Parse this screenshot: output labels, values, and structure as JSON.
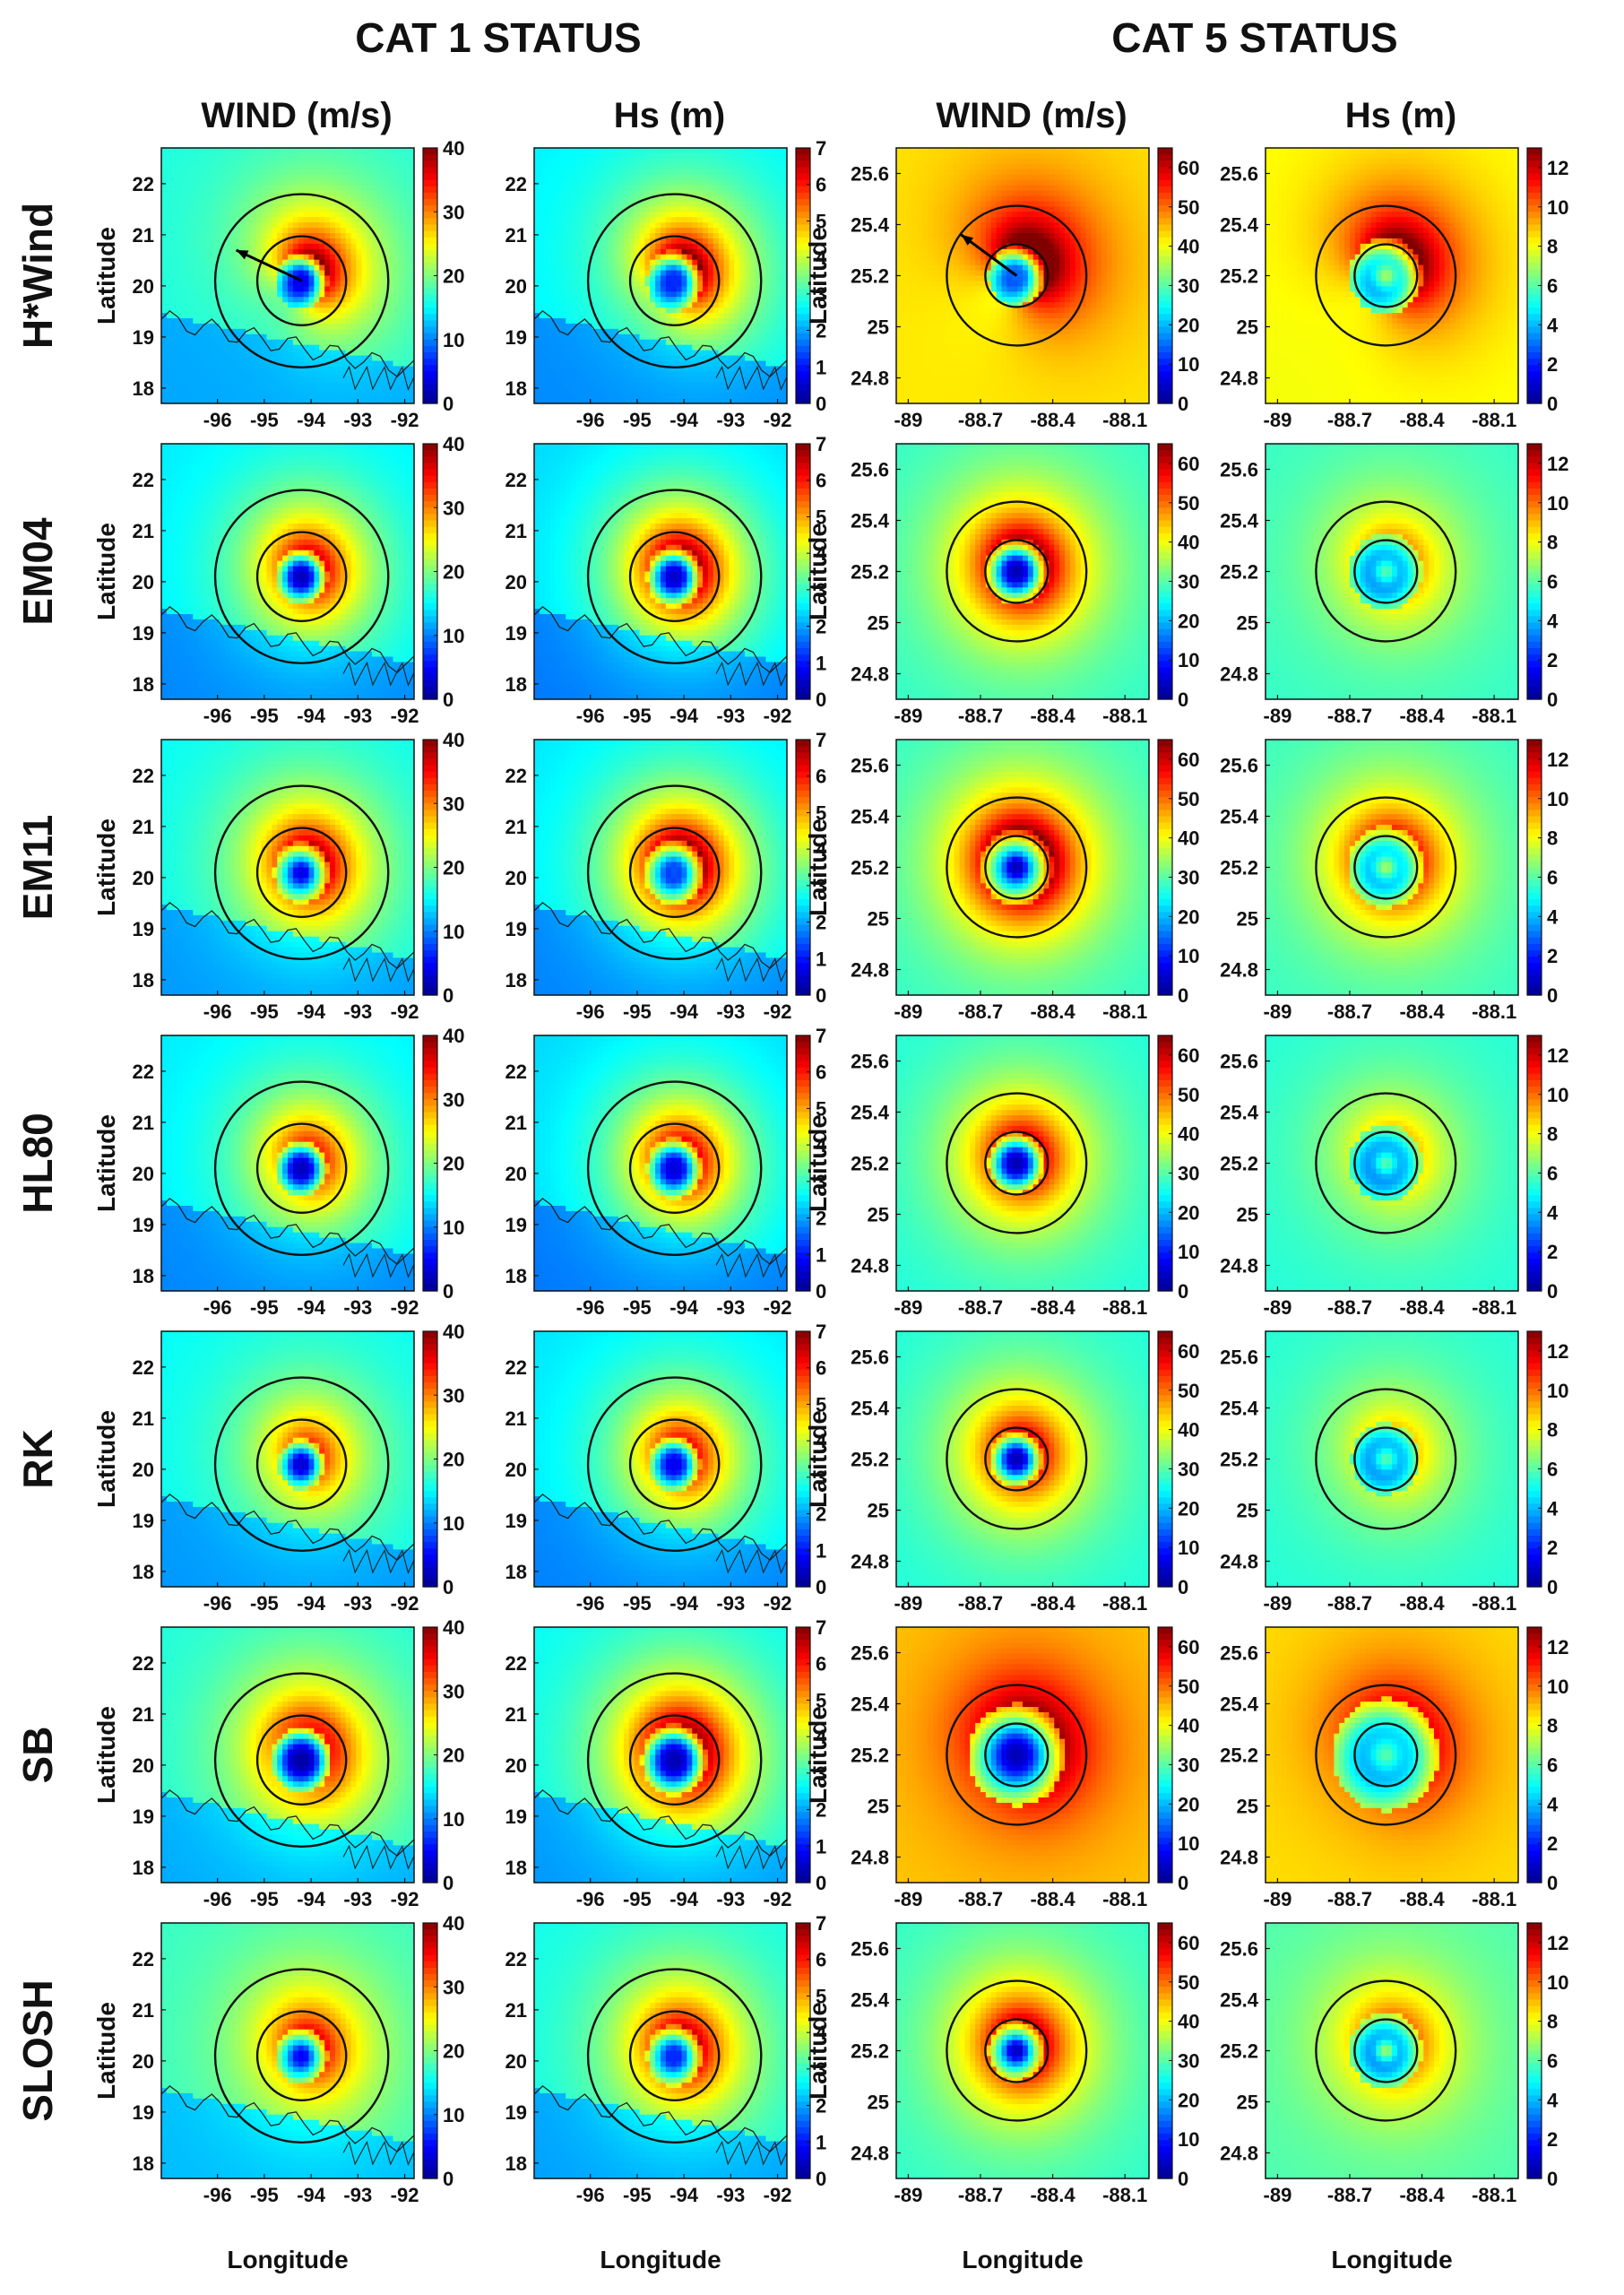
{
  "headers": {
    "cat1": "CAT 1 STATUS",
    "cat5": "CAT 5  STATUS"
  },
  "column_titles": [
    "WIND (m/s)",
    "Hs (m)",
    "WIND (m/s)",
    "Hs (m)"
  ],
  "x_label": "Longitude",
  "y_label": "Latitude",
  "colors": {
    "colormap": [
      "#00008f",
      "#0000ff",
      "#0080ff",
      "#00ffff",
      "#80ff80",
      "#ffff00",
      "#ff8000",
      "#ff0000",
      "#800000"
    ],
    "contour_line": "#111111",
    "coastline": "#222222"
  },
  "chart_data": [
    {
      "type": "heatmap",
      "name": "cat1-wind",
      "title": "WIND (m/s)",
      "xlabel": "Longitude",
      "ylabel": "Latitude",
      "xlim": [
        -97.2,
        -91.8
      ],
      "ylim": [
        17.7,
        22.7
      ],
      "xticks": [
        -96,
        -95,
        -94,
        -93,
        -92
      ],
      "yticks": [
        18,
        19,
        20,
        21,
        22
      ],
      "xtick_labels": [
        "-96",
        "-95",
        "-94",
        "-93",
        "-92"
      ],
      "ytick_labels": [
        "18",
        "19",
        "20",
        "21",
        "22"
      ],
      "colorbar_range": [
        0,
        40
      ],
      "colorbar_ticks": [
        "0",
        "10",
        "20",
        "30",
        "40"
      ],
      "eye": [
        -94.2,
        20.1
      ],
      "circles_deg": [
        0.95,
        1.85
      ],
      "coastline": true,
      "rows": [
        "H*Wind",
        "EM04",
        "EM11",
        "HL80",
        "RK",
        "SB",
        "SLOSH"
      ],
      "arrow_row": "H*Wind",
      "arrow_to": [
        -95.6,
        20.7
      ],
      "field_params": [
        {
          "rmax": 0.55,
          "peak": 30,
          "rcore": 0.25,
          "vcore": 4,
          "asym": 0.35,
          "bg": 16
        },
        {
          "rmax": 0.55,
          "peak": 32,
          "rcore": 0.28,
          "vcore": 2,
          "asym": 0.15,
          "bg": 14
        },
        {
          "rmax": 0.6,
          "peak": 33,
          "rcore": 0.15,
          "vcore": 4,
          "asym": 0.15,
          "bg": 15
        },
        {
          "rmax": 0.55,
          "peak": 30,
          "rcore": 0.3,
          "vcore": 2,
          "asym": 0.15,
          "bg": 14
        },
        {
          "rmax": 0.5,
          "peak": 29,
          "rcore": 0.22,
          "vcore": 3,
          "asym": 0.15,
          "bg": 15
        },
        {
          "rmax": 0.65,
          "peak": 33,
          "rcore": 0.42,
          "vcore": 1,
          "asym": 0.15,
          "bg": 16
        },
        {
          "rmax": 0.55,
          "peak": 31,
          "rcore": 0.15,
          "vcore": 5,
          "asym": 0.15,
          "bg": 17
        }
      ]
    },
    {
      "type": "heatmap",
      "name": "cat1-hs",
      "title": "Hs (m)",
      "xlabel": "Longitude",
      "ylabel": "",
      "xlim": [
        -97.2,
        -91.8
      ],
      "ylim": [
        17.7,
        22.7
      ],
      "xticks": [
        -96,
        -95,
        -94,
        -93,
        -92
      ],
      "yticks": [
        18,
        19,
        20,
        21,
        22
      ],
      "xtick_labels": [
        "-96",
        "-95",
        "-94",
        "-93",
        "-92"
      ],
      "ytick_labels": [
        "18",
        "19",
        "20",
        "21",
        "22"
      ],
      "colorbar_range": [
        0,
        7
      ],
      "colorbar_ticks": [
        "0",
        "1",
        "2",
        "3",
        "4",
        "5",
        "6",
        "7"
      ],
      "eye": [
        -94.2,
        20.1
      ],
      "circles_deg": [
        0.95,
        1.85
      ],
      "coastline": true,
      "rows": [
        "H*Wind",
        "EM04",
        "EM11",
        "HL80",
        "RK",
        "SB",
        "SLOSH"
      ],
      "field_params": [
        {
          "rmax": 0.6,
          "peak": 5.5,
          "rcore": 0.25,
          "vcore": 1.2,
          "asym": 0.3,
          "bg": 2.5
        },
        {
          "rmax": 0.6,
          "peak": 6.0,
          "rcore": 0.3,
          "vcore": 0.5,
          "asym": 0.15,
          "bg": 2.3
        },
        {
          "rmax": 0.65,
          "peak": 6.0,
          "rcore": 0.2,
          "vcore": 1.5,
          "asym": 0.15,
          "bg": 2.4
        },
        {
          "rmax": 0.6,
          "peak": 5.5,
          "rcore": 0.3,
          "vcore": 0.6,
          "asym": 0.15,
          "bg": 2.3
        },
        {
          "rmax": 0.55,
          "peak": 5.4,
          "rcore": 0.28,
          "vcore": 0.8,
          "asym": 0.15,
          "bg": 2.4
        },
        {
          "rmax": 0.7,
          "peak": 6.2,
          "rcore": 0.42,
          "vcore": 0.3,
          "asym": 0.15,
          "bg": 2.6
        },
        {
          "rmax": 0.6,
          "peak": 5.7,
          "rcore": 0.2,
          "vcore": 1.2,
          "asym": 0.15,
          "bg": 2.7
        }
      ]
    },
    {
      "type": "heatmap",
      "name": "cat5-wind",
      "title": "WIND (m/s)",
      "xlabel": "Longitude",
      "ylabel": "Latitude",
      "xlim": [
        -89.05,
        -88.0
      ],
      "ylim": [
        24.7,
        25.7
      ],
      "xticks": [
        -89,
        -88.7,
        -88.4,
        -88.1
      ],
      "yticks": [
        24.8,
        25,
        25.2,
        25.4,
        25.6
      ],
      "xtick_labels": [
        "-89",
        "-88.7",
        "-88.4",
        "-88.1"
      ],
      "ytick_labels": [
        "24.8",
        "25",
        "25.2",
        "25.4",
        "25.6"
      ],
      "colorbar_range": [
        0,
        65
      ],
      "colorbar_ticks": [
        "0",
        "10",
        "20",
        "30",
        "40",
        "50",
        "60"
      ],
      "colorbar_tick_values": [
        0,
        10,
        20,
        30,
        40,
        50,
        60
      ],
      "eye": [
        -88.55,
        25.2
      ],
      "circles_deg": [
        0.13,
        0.29
      ],
      "coastline": false,
      "rows": [
        "H*Wind",
        "EM04",
        "EM11",
        "HL80",
        "RK",
        "SB",
        "SLOSH"
      ],
      "arrow_row": "H*Wind",
      "arrow_to": [
        -88.78,
        25.36
      ],
      "field_params": [
        {
          "rmax": 0.12,
          "peak": 58,
          "rcore": 0.05,
          "vcore": 15,
          "asym": 0.3,
          "bg": 42
        },
        {
          "rmax": 0.13,
          "peak": 58,
          "rcore": 0.06,
          "vcore": 3,
          "asym": 0.1,
          "bg": 27
        },
        {
          "rmax": 0.15,
          "peak": 60,
          "rcore": 0.035,
          "vcore": 3,
          "asym": 0.1,
          "bg": 27
        },
        {
          "rmax": 0.12,
          "peak": 54,
          "rcore": 0.06,
          "vcore": 3,
          "asym": 0.1,
          "bg": 26
        },
        {
          "rmax": 0.11,
          "peak": 54,
          "rcore": 0.05,
          "vcore": 3,
          "asym": 0.1,
          "bg": 26
        },
        {
          "rmax": 0.2,
          "peak": 58,
          "rcore": 0.08,
          "vcore": 3,
          "asym": 0.1,
          "bg": 44
        },
        {
          "rmax": 0.12,
          "peak": 56,
          "rcore": 0.035,
          "vcore": 4,
          "asym": 0.1,
          "bg": 27
        }
      ]
    },
    {
      "type": "heatmap",
      "name": "cat5-hs",
      "title": "Hs (m)",
      "xlabel": "Longitude",
      "ylabel": "",
      "xlim": [
        -89.05,
        -88.0
      ],
      "ylim": [
        24.7,
        25.7
      ],
      "xticks": [
        -89,
        -88.7,
        -88.4,
        -88.1
      ],
      "yticks": [
        24.8,
        25,
        25.2,
        25.4,
        25.6
      ],
      "xtick_labels": [
        "-89",
        "-88.7",
        "-88.4",
        "-88.1"
      ],
      "ytick_labels": [
        "24.8",
        "25",
        "25.2",
        "25.4",
        "25.6"
      ],
      "colorbar_range": [
        0,
        13
      ],
      "colorbar_ticks": [
        "0",
        "2",
        "4",
        "6",
        "8",
        "10",
        "12"
      ],
      "colorbar_tick_values": [
        0,
        2,
        4,
        6,
        8,
        10,
        12
      ],
      "eye": [
        -88.55,
        25.2
      ],
      "circles_deg": [
        0.13,
        0.29
      ],
      "coastline": false,
      "rows": [
        "H*Wind",
        "EM04",
        "EM11",
        "HL80",
        "RK",
        "SB",
        "SLOSH"
      ],
      "field_params": [
        {
          "rmax": 0.15,
          "peak": 11,
          "rcore": 0.06,
          "vcore": 7,
          "asym": 0.25,
          "bg": 8
        },
        {
          "rmax": 0.15,
          "peak": 8.5,
          "rcore": 0.06,
          "vcore": 6,
          "asym": 0.1,
          "bg": 5.5
        },
        {
          "rmax": 0.16,
          "peak": 10,
          "rcore": 0.06,
          "vcore": 7,
          "asym": 0.1,
          "bg": 5.5
        },
        {
          "rmax": 0.15,
          "peak": 8,
          "rcore": 0.06,
          "vcore": 6,
          "asym": 0.1,
          "bg": 5.3
        },
        {
          "rmax": 0.14,
          "peak": 8,
          "rcore": 0.06,
          "vcore": 6,
          "asym": 0.1,
          "bg": 5.3
        },
        {
          "rmax": 0.22,
          "peak": 10.5,
          "rcore": 0.08,
          "vcore": 6,
          "asym": 0.1,
          "bg": 8.5
        },
        {
          "rmax": 0.15,
          "peak": 9,
          "rcore": 0.05,
          "vcore": 7,
          "asym": 0.1,
          "bg": 5.8
        }
      ]
    }
  ]
}
